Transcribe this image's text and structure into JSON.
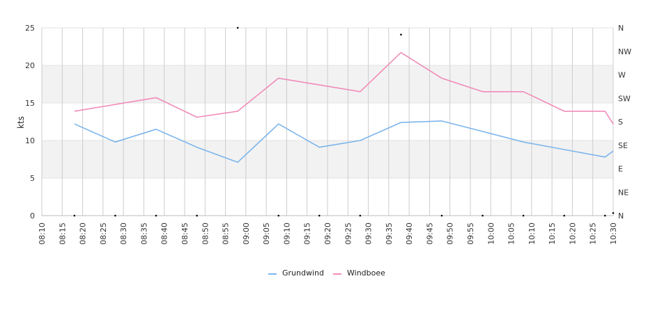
{
  "chart_data": {
    "type": "line",
    "ylabel": "kts",
    "ylim": [
      0,
      25
    ],
    "y_ticks": [
      "0",
      "5",
      "10",
      "15",
      "20",
      "25"
    ],
    "x_ticks": [
      "08:10",
      "08:15",
      "08:20",
      "08:25",
      "08:30",
      "08:35",
      "08:40",
      "08:45",
      "08:50",
      "08:55",
      "09:00",
      "09:05",
      "09:10",
      "09:15",
      "09:20",
      "09:25",
      "09:30",
      "09:35",
      "09:40",
      "09:45",
      "09:50",
      "09:55",
      "10:00",
      "10:05",
      "10:10",
      "10:15",
      "10:20",
      "10:25",
      "10:30"
    ],
    "xlim": [
      "08:10",
      "10:30"
    ],
    "right_axis_labels": [
      "N",
      "NE",
      "E",
      "SE",
      "S",
      "SW",
      "W",
      "NW",
      "N"
    ],
    "grid": true,
    "alternating_bands": true,
    "legend_position": "bottom-center",
    "series": [
      {
        "name": "Grundwind",
        "color": "#7cb5ec",
        "points": [
          [
            "08:18",
            12.2
          ],
          [
            "08:28",
            9.8
          ],
          [
            "08:38",
            11.5
          ],
          [
            "08:48",
            9.1
          ],
          [
            "08:58",
            7.1
          ],
          [
            "09:08",
            12.2
          ],
          [
            "09:18",
            9.1
          ],
          [
            "09:28",
            10.0
          ],
          [
            "09:38",
            12.4
          ],
          [
            "09:48",
            12.6
          ],
          [
            "09:58",
            11.2
          ],
          [
            "10:08",
            9.8
          ],
          [
            "10:18",
            8.8
          ],
          [
            "10:28",
            7.8
          ],
          [
            "10:30",
            8.6
          ]
        ]
      },
      {
        "name": "Windboee",
        "color": "#f08cb8",
        "points": [
          [
            "08:18",
            13.9
          ],
          [
            "08:38",
            15.7
          ],
          [
            "08:48",
            13.1
          ],
          [
            "08:58",
            13.9
          ],
          [
            "09:08",
            18.3
          ],
          [
            "09:18",
            17.4
          ],
          [
            "09:28",
            16.5
          ],
          [
            "09:38",
            21.7
          ],
          [
            "09:48",
            18.3
          ],
          [
            "09:58",
            16.5
          ],
          [
            "10:08",
            16.5
          ],
          [
            "10:18",
            13.9
          ],
          [
            "10:28",
            13.9
          ],
          [
            "10:30",
            12.2
          ]
        ]
      }
    ],
    "direction_markers": [
      [
        "08:18",
        0
      ],
      [
        "08:28",
        0
      ],
      [
        "08:38",
        0
      ],
      [
        "08:48",
        0
      ],
      [
        "08:58",
        360
      ],
      [
        "09:08",
        0
      ],
      [
        "09:18",
        0
      ],
      [
        "09:28",
        0
      ],
      [
        "09:38",
        347
      ],
      [
        "09:48",
        0
      ],
      [
        "09:58",
        0
      ],
      [
        "10:08",
        0
      ],
      [
        "10:18",
        0
      ],
      [
        "10:28",
        0
      ],
      [
        "10:30",
        5
      ]
    ]
  }
}
